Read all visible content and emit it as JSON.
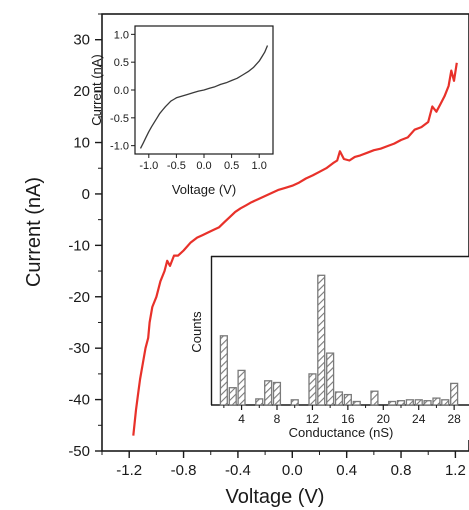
{
  "chart_data": [
    {
      "type": "line",
      "xlabel": "Voltage (V)",
      "ylabel": "Current (nA)",
      "xlim": [
        -1.4,
        1.3
      ],
      "ylim": [
        -50,
        35
      ],
      "xticks": [
        "-1.2",
        "-0.8",
        "-0.4",
        "0.0",
        "0.4",
        "0.8",
        "1.2"
      ],
      "yticks": [
        "-50",
        "-40",
        "-30",
        "-20",
        "-10",
        "0",
        "10",
        "20",
        "30"
      ],
      "line_color": "#e8312a",
      "series": [
        {
          "x": [
            -1.17,
            -1.15,
            -1.13,
            -1.12,
            -1.1,
            -1.08,
            -1.06,
            -1.05,
            -1.03,
            -1.0,
            -0.97,
            -0.94,
            -0.92,
            -0.9,
            -0.87,
            -0.84,
            -0.8,
            -0.75,
            -0.7,
            -0.66,
            -0.62,
            -0.58,
            -0.54,
            -0.5,
            -0.46,
            -0.42,
            -0.38,
            -0.34,
            -0.3,
            -0.25,
            -0.2,
            -0.15,
            -0.1,
            -0.05,
            0.0,
            0.05,
            0.1,
            0.15,
            0.2,
            0.25,
            0.3,
            0.33,
            0.35,
            0.38,
            0.42,
            0.46,
            0.5,
            0.55,
            0.6,
            0.65,
            0.7,
            0.75,
            0.8,
            0.85,
            0.9,
            0.95,
            1.0,
            1.03,
            1.06,
            1.09,
            1.12,
            1.15,
            1.17,
            1.19,
            1.21
          ],
          "y": [
            -47,
            -42,
            -38,
            -36,
            -33,
            -30,
            -28,
            -25,
            -22,
            -20,
            -17,
            -15,
            -13,
            -14,
            -12,
            -12,
            -11,
            -9.5,
            -8.5,
            -8,
            -7.5,
            -7,
            -6.5,
            -5.5,
            -4.5,
            -3.5,
            -2.8,
            -2.2,
            -1.6,
            -1,
            -0.4,
            0.2,
            0.8,
            1.2,
            1.6,
            2.2,
            3,
            3.6,
            4.3,
            5,
            6,
            6.5,
            8.3,
            6.8,
            6.5,
            7.2,
            7.5,
            8,
            8.5,
            8.8,
            9.3,
            9.8,
            10.5,
            11,
            12.5,
            13,
            14,
            17,
            16,
            17.5,
            19,
            21,
            24,
            22,
            25.5
          ]
        }
      ]
    },
    {
      "type": "line",
      "xlabel": "Voltage (V)",
      "ylabel": "Current (nA)",
      "xlim": [
        -1.25,
        1.25
      ],
      "ylim": [
        -1.15,
        1.15
      ],
      "xticks": [
        "-1.0",
        "-0.5",
        "0.0",
        "0.5",
        "1.0"
      ],
      "yticks": [
        "-1.0",
        "-0.5",
        "0.0",
        "0.5",
        "1.0"
      ],
      "line_color": "#3a3a3a",
      "series": [
        {
          "x": [
            -1.15,
            -1.1,
            -1.05,
            -1.0,
            -0.95,
            -0.9,
            -0.85,
            -0.8,
            -0.75,
            -0.7,
            -0.65,
            -0.6,
            -0.55,
            -0.5,
            -0.4,
            -0.3,
            -0.2,
            -0.1,
            0.0,
            0.1,
            0.2,
            0.3,
            0.4,
            0.5,
            0.6,
            0.7,
            0.8,
            0.9,
            1.0,
            1.05,
            1.1,
            1.15
          ],
          "y": [
            -1.05,
            -0.95,
            -0.85,
            -0.75,
            -0.66,
            -0.58,
            -0.5,
            -0.42,
            -0.36,
            -0.3,
            -0.25,
            -0.2,
            -0.17,
            -0.14,
            -0.11,
            -0.08,
            -0.05,
            -0.02,
            0.0,
            0.03,
            0.06,
            0.1,
            0.13,
            0.17,
            0.21,
            0.27,
            0.33,
            0.41,
            0.52,
            0.6,
            0.68,
            0.8
          ]
        }
      ]
    },
    {
      "type": "bar",
      "xlabel": "Conductance (nS)",
      "ylabel": "Counts",
      "xlim": [
        1,
        29
      ],
      "ylim": [
        0,
        17
      ],
      "xticks": [
        "4",
        "8",
        "12",
        "16",
        "20",
        "24",
        "28"
      ],
      "bar_color": "#7a7a7a",
      "bars": {
        "x": [
          2,
          3,
          4,
          6,
          7,
          8,
          10,
          12,
          13,
          14,
          15,
          16,
          17,
          19,
          21,
          22,
          23,
          24,
          25,
          26,
          27,
          28
        ],
        "values": [
          8,
          2,
          4,
          0.7,
          2.8,
          2.6,
          0.6,
          3.6,
          15,
          6,
          1.5,
          1.2,
          0.4,
          1.6,
          0.4,
          0.5,
          0.6,
          0.6,
          0.5,
          0.8,
          0.6,
          2.5
        ]
      }
    }
  ]
}
